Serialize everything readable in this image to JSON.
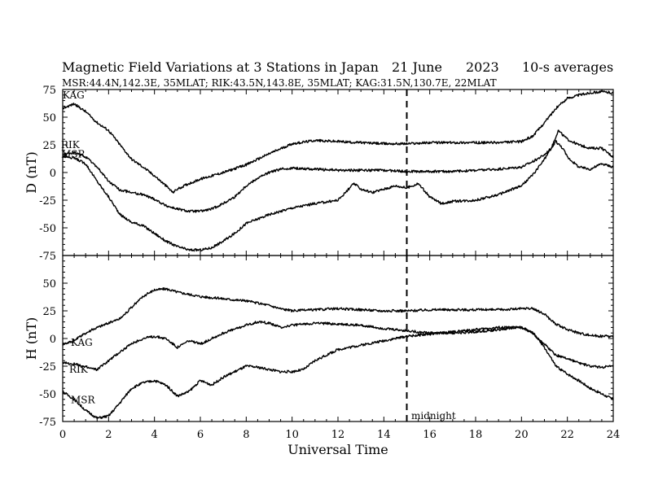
{
  "header": {
    "title": "Magnetic Field Variations at 3 Stations in Japan",
    "date": "21 June",
    "year": "2023",
    "averaging": "10-s averages",
    "stations_line": "MSR:44.4N,142.3E, 35MLAT;  RIK:43.5N,143.8E, 35MLAT;  KAG:31.5N,130.7E, 22MLAT"
  },
  "annotation": {
    "midnight": "midnight"
  },
  "chart_data": [
    {
      "type": "line",
      "panel": "D",
      "ylabel": "D (nT)",
      "xlabel": "Universal Time",
      "xlim": [
        0,
        24
      ],
      "ylim": [
        -75,
        75
      ],
      "x_ticks": [
        "0",
        "2",
        "4",
        "6",
        "8",
        "10",
        "12",
        "14",
        "16",
        "18",
        "20",
        "22",
        "24"
      ],
      "y_ticks": [
        "75",
        "50",
        "25",
        "0",
        "-25",
        "-50",
        "-75"
      ],
      "y_tick_values": [
        75,
        50,
        25,
        0,
        -25,
        -50,
        -75
      ],
      "vline_x": 15,
      "series": [
        {
          "name": "KAG",
          "points": [
            [
              0,
              58
            ],
            [
              0.5,
              62
            ],
            [
              1,
              55
            ],
            [
              1.5,
              45
            ],
            [
              2,
              38
            ],
            [
              2.5,
              25
            ],
            [
              3,
              12
            ],
            [
              3.5,
              5
            ],
            [
              4,
              -3
            ],
            [
              4.5,
              -12
            ],
            [
              4.8,
              -18
            ],
            [
              5,
              -15
            ],
            [
              5.5,
              -10
            ],
            [
              6,
              -6
            ],
            [
              7,
              0
            ],
            [
              8,
              7
            ],
            [
              9,
              17
            ],
            [
              10,
              26
            ],
            [
              11,
              29
            ],
            [
              12,
              28
            ],
            [
              13,
              27
            ],
            [
              14,
              26
            ],
            [
              15,
              26
            ],
            [
              16,
              27
            ],
            [
              17,
              27
            ],
            [
              18,
              27
            ],
            [
              19,
              27
            ],
            [
              20,
              28
            ],
            [
              20.5,
              33
            ],
            [
              21,
              45
            ],
            [
              21.5,
              58
            ],
            [
              22,
              67
            ],
            [
              22.5,
              70
            ],
            [
              23,
              72
            ],
            [
              23.5,
              73
            ],
            [
              24,
              72
            ]
          ]
        },
        {
          "name": "RIK",
          "points": [
            [
              0,
              16
            ],
            [
              0.5,
              18
            ],
            [
              1,
              14
            ],
            [
              1.5,
              5
            ],
            [
              2,
              -8
            ],
            [
              2.5,
              -16
            ],
            [
              3,
              -18
            ],
            [
              3.5,
              -20
            ],
            [
              4,
              -24
            ],
            [
              4.5,
              -30
            ],
            [
              5,
              -33
            ],
            [
              5.5,
              -35
            ],
            [
              6,
              -35
            ],
            [
              6.5,
              -33
            ],
            [
              7,
              -28
            ],
            [
              7.5,
              -22
            ],
            [
              8,
              -12
            ],
            [
              8.5,
              -5
            ],
            [
              9,
              0
            ],
            [
              9.5,
              3
            ],
            [
              10,
              4
            ],
            [
              11,
              3
            ],
            [
              12,
              2
            ],
            [
              13,
              2
            ],
            [
              14,
              2
            ],
            [
              15,
              1
            ],
            [
              16,
              1
            ],
            [
              17,
              1
            ],
            [
              18,
              2
            ],
            [
              19,
              3
            ],
            [
              20,
              5
            ],
            [
              20.5,
              10
            ],
            [
              21,
              16
            ],
            [
              21.3,
              22
            ],
            [
              21.6,
              38
            ],
            [
              22,
              30
            ],
            [
              22.5,
              25
            ],
            [
              23,
              22
            ],
            [
              23.5,
              22
            ],
            [
              24,
              14
            ]
          ]
        },
        {
          "name": "MSR",
          "points": [
            [
              0,
              15
            ],
            [
              0.5,
              13
            ],
            [
              1,
              8
            ],
            [
              1.5,
              -8
            ],
            [
              2,
              -22
            ],
            [
              2.5,
              -38
            ],
            [
              3,
              -45
            ],
            [
              3.5,
              -48
            ],
            [
              4,
              -55
            ],
            [
              4.5,
              -62
            ],
            [
              5,
              -67
            ],
            [
              5.5,
              -70
            ],
            [
              6,
              -70
            ],
            [
              6.5,
              -68
            ],
            [
              7,
              -62
            ],
            [
              7.5,
              -55
            ],
            [
              8,
              -46
            ],
            [
              8.5,
              -42
            ],
            [
              9,
              -38
            ],
            [
              9.5,
              -35
            ],
            [
              10,
              -32
            ],
            [
              11,
              -28
            ],
            [
              12,
              -25
            ],
            [
              12.7,
              -10
            ],
            [
              13,
              -15
            ],
            [
              13.5,
              -18
            ],
            [
              14,
              -15
            ],
            [
              14.5,
              -12
            ],
            [
              15,
              -14
            ],
            [
              15.5,
              -10
            ],
            [
              16,
              -22
            ],
            [
              16.5,
              -28
            ],
            [
              17,
              -26
            ],
            [
              18,
              -25
            ],
            [
              19,
              -20
            ],
            [
              20,
              -12
            ],
            [
              20.5,
              -2
            ],
            [
              21,
              12
            ],
            [
              21.5,
              28
            ],
            [
              21.8,
              22
            ],
            [
              22,
              14
            ],
            [
              22.5,
              5
            ],
            [
              23,
              3
            ],
            [
              23.5,
              8
            ],
            [
              24,
              5
            ]
          ]
        }
      ]
    },
    {
      "type": "line",
      "panel": "H",
      "ylabel": "H (nT)",
      "xlabel": "Universal Time",
      "xlim": [
        0,
        24
      ],
      "ylim": [
        -75,
        75
      ],
      "x_ticks": [
        "0",
        "2",
        "4",
        "6",
        "8",
        "10",
        "12",
        "14",
        "16",
        "18",
        "20",
        "22",
        "24"
      ],
      "y_ticks": [
        "50",
        "25",
        "0",
        "-25",
        "-50",
        "-75"
      ],
      "y_tick_values": [
        50,
        25,
        0,
        -25,
        -50,
        -75
      ],
      "vline_x": 15,
      "series": [
        {
          "name": "KAG",
          "points": [
            [
              0,
              -5
            ],
            [
              0.5,
              -2
            ],
            [
              1,
              5
            ],
            [
              1.5,
              10
            ],
            [
              2,
              14
            ],
            [
              2.5,
              18
            ],
            [
              3,
              28
            ],
            [
              3.5,
              38
            ],
            [
              4,
              44
            ],
            [
              4.5,
              45
            ],
            [
              5,
              42
            ],
            [
              5.5,
              40
            ],
            [
              6,
              38
            ],
            [
              7,
              36
            ],
            [
              8,
              34
            ],
            [
              9,
              30
            ],
            [
              9.5,
              27
            ],
            [
              10,
              25
            ],
            [
              11,
              26
            ],
            [
              12,
              27
            ],
            [
              13,
              26
            ],
            [
              14,
              25
            ],
            [
              15,
              25
            ],
            [
              16,
              26
            ],
            [
              17,
              26
            ],
            [
              18,
              26
            ],
            [
              19,
              26
            ],
            [
              20,
              27
            ],
            [
              20.5,
              27
            ],
            [
              21,
              22
            ],
            [
              21.5,
              13
            ],
            [
              22,
              8
            ],
            [
              22.5,
              5
            ],
            [
              23,
              3
            ],
            [
              23.5,
              2
            ],
            [
              24,
              2
            ]
          ]
        },
        {
          "name": "RIK",
          "points": [
            [
              0,
              -22
            ],
            [
              0.5,
              -23
            ],
            [
              1,
              -26
            ],
            [
              1.5,
              -28
            ],
            [
              2,
              -20
            ],
            [
              2.5,
              -12
            ],
            [
              3,
              -5
            ],
            [
              3.5,
              0
            ],
            [
              4,
              2
            ],
            [
              4.5,
              0
            ],
            [
              5,
              -8
            ],
            [
              5.5,
              -2
            ],
            [
              6,
              -5
            ],
            [
              7,
              5
            ],
            [
              8,
              12
            ],
            [
              8.5,
              15
            ],
            [
              9,
              14
            ],
            [
              9.5,
              10
            ],
            [
              10,
              12
            ],
            [
              11,
              14
            ],
            [
              12,
              13
            ],
            [
              13,
              12
            ],
            [
              14,
              9
            ],
            [
              15,
              7
            ],
            [
              16,
              5
            ],
            [
              17,
              5
            ],
            [
              18,
              6
            ],
            [
              19,
              8
            ],
            [
              20,
              10
            ],
            [
              20.5,
              5
            ],
            [
              21,
              -5
            ],
            [
              21.5,
              -15
            ],
            [
              22,
              -18
            ],
            [
              22.5,
              -22
            ],
            [
              23,
              -25
            ],
            [
              23.5,
              -26
            ],
            [
              24,
              -25
            ]
          ]
        },
        {
          "name": "MSR",
          "points": [
            [
              0,
              -48
            ],
            [
              0.5,
              -55
            ],
            [
              1,
              -65
            ],
            [
              1.5,
              -72
            ],
            [
              2,
              -70
            ],
            [
              2.5,
              -58
            ],
            [
              3,
              -45
            ],
            [
              3.5,
              -40
            ],
            [
              4,
              -38
            ],
            [
              4.5,
              -42
            ],
            [
              5,
              -52
            ],
            [
              5.5,
              -48
            ],
            [
              6,
              -38
            ],
            [
              6.5,
              -42
            ],
            [
              7,
              -35
            ],
            [
              7.5,
              -30
            ],
            [
              8,
              -25
            ],
            [
              8.5,
              -26
            ],
            [
              9,
              -28
            ],
            [
              9.5,
              -30
            ],
            [
              10,
              -30
            ],
            [
              10.5,
              -28
            ],
            [
              11,
              -20
            ],
            [
              11.5,
              -15
            ],
            [
              12,
              -10
            ],
            [
              13,
              -6
            ],
            [
              14,
              -2
            ],
            [
              15,
              2
            ],
            [
              16,
              4
            ],
            [
              17,
              6
            ],
            [
              18,
              8
            ],
            [
              19,
              10
            ],
            [
              20,
              10
            ],
            [
              20.5,
              5
            ],
            [
              21,
              -8
            ],
            [
              21.5,
              -25
            ],
            [
              22,
              -32
            ],
            [
              22.5,
              -38
            ],
            [
              23,
              -45
            ],
            [
              23.5,
              -50
            ],
            [
              24,
              -55
            ]
          ]
        }
      ]
    }
  ]
}
